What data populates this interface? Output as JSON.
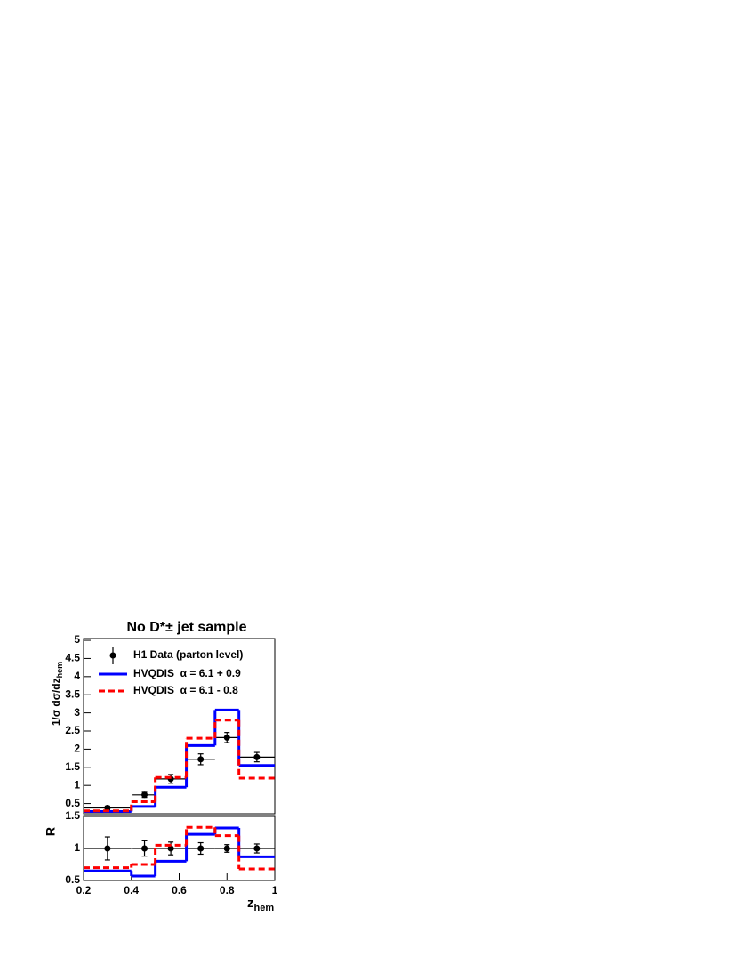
{
  "chart_data": [
    {
      "type": "histogram",
      "title": "No D*± jet sample",
      "ylabel": "1/σ dσ/dz",
      "ylabel_sub": "hem",
      "xlim": [
        0.2,
        1
      ],
      "ylim": [
        0.22,
        5.05
      ],
      "yticks": [
        0.5,
        1,
        1.5,
        2,
        2.5,
        3,
        3.5,
        4,
        4.5,
        5
      ],
      "legend": "upper left",
      "series": [
        {
          "name": "H1 Data (parton level)",
          "color": "#000000",
          "x": [
            0.3,
            0.455,
            0.565,
            0.69,
            0.8,
            0.925
          ],
          "values": [
            0.38,
            0.74,
            1.18,
            1.72,
            2.32,
            1.78
          ],
          "yerr": [
            0.05,
            0.07,
            0.12,
            0.15,
            0.14,
            0.13
          ],
          "xerr": [
            0.1,
            0.05,
            0.065,
            0.06,
            0.05,
            0.075
          ]
        },
        {
          "name": "HVQDIS  α = 6.1 + 0.9",
          "color": "#0000ff",
          "bins": [
            0.2,
            0.4,
            0.5,
            0.63,
            0.75,
            0.85,
            1
          ],
          "values": [
            0.28,
            0.42,
            0.95,
            2.1,
            3.08,
            1.55
          ]
        },
        {
          "name": "HVQDIS  α = 6.1 - 0.8",
          "color": "#ff0000",
          "dashed": true,
          "bins": [
            0.2,
            0.4,
            0.5,
            0.63,
            0.75,
            0.85,
            1
          ],
          "values": [
            0.3,
            0.55,
            1.22,
            2.3,
            2.8,
            1.2
          ]
        }
      ]
    },
    {
      "type": "histogram",
      "ylabel": "R",
      "xlabel": "z",
      "xlabel_sub": "hem",
      "xlim": [
        0.2,
        1
      ],
      "ylim": [
        0.5,
        1.5
      ],
      "xticks": [
        0.2,
        0.4,
        0.6,
        0.8,
        1
      ],
      "yticks": [
        0.5,
        1,
        1.5
      ],
      "series": [
        {
          "color": "#000000",
          "x": [
            0.3,
            0.455,
            0.565,
            0.69,
            0.8,
            0.925
          ],
          "values": [
            1,
            1,
            1,
            1,
            1,
            1
          ],
          "yerr": [
            0.18,
            0.12,
            0.1,
            0.09,
            0.06,
            0.07
          ],
          "xerr": [
            0.1,
            0.05,
            0.065,
            0.06,
            0.05,
            0.075
          ]
        },
        {
          "color": "#0000ff",
          "bins": [
            0.2,
            0.4,
            0.5,
            0.63,
            0.75,
            0.85,
            1
          ],
          "values": [
            0.65,
            0.57,
            0.8,
            1.22,
            1.32,
            0.87
          ]
        },
        {
          "color": "#ff0000",
          "dashed": true,
          "bins": [
            0.2,
            0.4,
            0.5,
            0.63,
            0.75,
            0.85,
            1
          ],
          "values": [
            0.7,
            0.75,
            1.05,
            1.33,
            1.2,
            0.68
          ]
        }
      ]
    }
  ]
}
